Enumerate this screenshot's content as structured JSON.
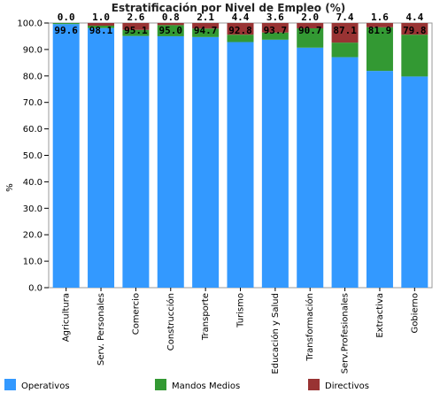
{
  "chart_data": {
    "type": "bar",
    "stacked": true,
    "title": "Estratificación por Nivel de Empleo (%)",
    "xlabel": "",
    "ylabel": "%",
    "ylim": [
      0,
      100
    ],
    "yticks": [
      "0.0",
      "10.0",
      "20.0",
      "30.0",
      "40.0",
      "50.0",
      "60.0",
      "70.0",
      "80.0",
      "90.0",
      "100.0"
    ],
    "grid": false,
    "legend_position": "bottom",
    "categories": [
      "Agricultura",
      "Serv. Personales",
      "Comercio",
      "Construcción",
      "Transporte",
      "Turismo",
      "Educación y Salud",
      "Transformación",
      "Serv.Profesionales",
      "Extractiva",
      "Gobierno"
    ],
    "series": [
      {
        "name": "Operativos",
        "color": "#3399ff",
        "values": [
          99.6,
          98.1,
          95.1,
          95.0,
          94.7,
          92.8,
          93.7,
          90.7,
          87.1,
          81.9,
          79.8
        ]
      },
      {
        "name": "Mandos Medios",
        "color": "#339933",
        "values": [
          0.4,
          0.9,
          2.3,
          4.2,
          3.2,
          2.8,
          2.7,
          7.3,
          5.5,
          16.5,
          15.8
        ]
      },
      {
        "name": "Directivos",
        "color": "#993333",
        "values": [
          0.0,
          1.0,
          2.6,
          0.8,
          2.1,
          4.4,
          3.6,
          2.0,
          7.4,
          1.6,
          4.4
        ]
      }
    ],
    "bottom_labels": [
      "99.6",
      "98.1",
      "95.1",
      "95.0",
      "94.7",
      "92.8",
      "93.7",
      "90.7",
      "87.1",
      "81.9",
      "79.8"
    ],
    "top_labels": [
      "0.0",
      "1.0",
      "2.6",
      "0.8",
      "2.1",
      "4.4",
      "3.6",
      "2.0",
      "7.4",
      "1.6",
      "4.4"
    ]
  }
}
